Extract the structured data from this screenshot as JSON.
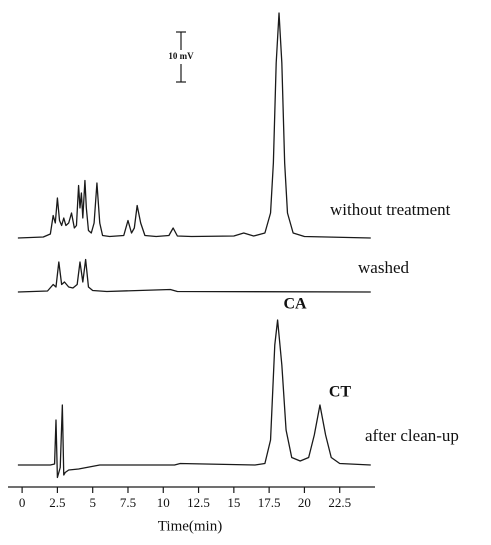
{
  "chart_data": {
    "type": "line",
    "xlabel": "Time(min)",
    "xlim": [
      -1,
      25
    ],
    "xticks": [
      0,
      2.5,
      5,
      7.5,
      10,
      12.5,
      15,
      17.5,
      20,
      22.5
    ],
    "scale_bar": {
      "label": "10 mV",
      "value": 10
    },
    "annotations": [
      {
        "text": "CA"
      },
      {
        "text": "CT"
      }
    ],
    "series": [
      {
        "name": "without treatment",
        "color": "#1a1a1a",
        "x": [
          -0.3,
          1.5,
          2.0,
          2.2,
          2.35,
          2.5,
          2.65,
          2.8,
          2.95,
          3.1,
          3.3,
          3.5,
          3.7,
          3.85,
          4.0,
          4.1,
          4.2,
          4.3,
          4.45,
          4.55,
          4.7,
          4.9,
          5.1,
          5.3,
          5.5,
          5.7,
          6.2,
          7.2,
          7.5,
          7.75,
          7.95,
          8.15,
          8.4,
          8.7,
          9.5,
          10.4,
          10.7,
          11.0,
          12,
          15.0,
          15.7,
          16.4,
          17.2,
          17.6,
          17.8,
          18.0,
          18.2,
          18.4,
          18.6,
          18.8,
          19.2,
          20,
          24.7
        ],
        "values": [
          0,
          0.2,
          0.8,
          4.5,
          3,
          8,
          3.5,
          2.5,
          4,
          2.5,
          3,
          5,
          2,
          2.5,
          10.5,
          6,
          9,
          4,
          11.5,
          6,
          1.5,
          1,
          3,
          11,
          3,
          0.5,
          0.3,
          0.5,
          3.5,
          1,
          2,
          6.5,
          3,
          0.5,
          0.3,
          0.5,
          2,
          0.4,
          0.3,
          0.4,
          1,
          0.4,
          1,
          5,
          15,
          35,
          45,
          35,
          15,
          5,
          1,
          0.3,
          0
        ]
      },
      {
        "name": "washed",
        "color": "#1a1a1a",
        "x": [
          -0.3,
          1.8,
          2.2,
          2.4,
          2.6,
          2.8,
          3.0,
          3.3,
          3.6,
          3.9,
          4.1,
          4.3,
          4.5,
          4.7,
          5.0,
          6,
          10.5,
          11,
          24.7
        ],
        "values": [
          0,
          0.2,
          1.5,
          1,
          6,
          1.5,
          2,
          1,
          0.8,
          1.5,
          6,
          2,
          6.5,
          1,
          0.3,
          0.1,
          0.5,
          0.1,
          0
        ]
      },
      {
        "name": "after clean-up",
        "color": "#1a1a1a",
        "x": [
          -0.3,
          2.0,
          2.3,
          2.4,
          2.5,
          2.7,
          2.85,
          2.95,
          3.05,
          3.3,
          4.0,
          5.5,
          10.8,
          11.2,
          16.5,
          17.2,
          17.6,
          17.9,
          18.1,
          18.4,
          18.7,
          19.1,
          19.7,
          20.3,
          20.7,
          21.1,
          21.5,
          21.9,
          22.5,
          24.7
        ],
        "values": [
          0,
          0,
          0.2,
          9,
          -2.5,
          -0.5,
          12,
          -2,
          -1.5,
          -1,
          -0.8,
          0,
          0,
          0.3,
          0,
          0.3,
          5,
          24,
          29,
          20,
          7,
          1.5,
          0.8,
          1.5,
          6,
          12,
          6,
          1.5,
          0.3,
          0
        ]
      }
    ]
  }
}
